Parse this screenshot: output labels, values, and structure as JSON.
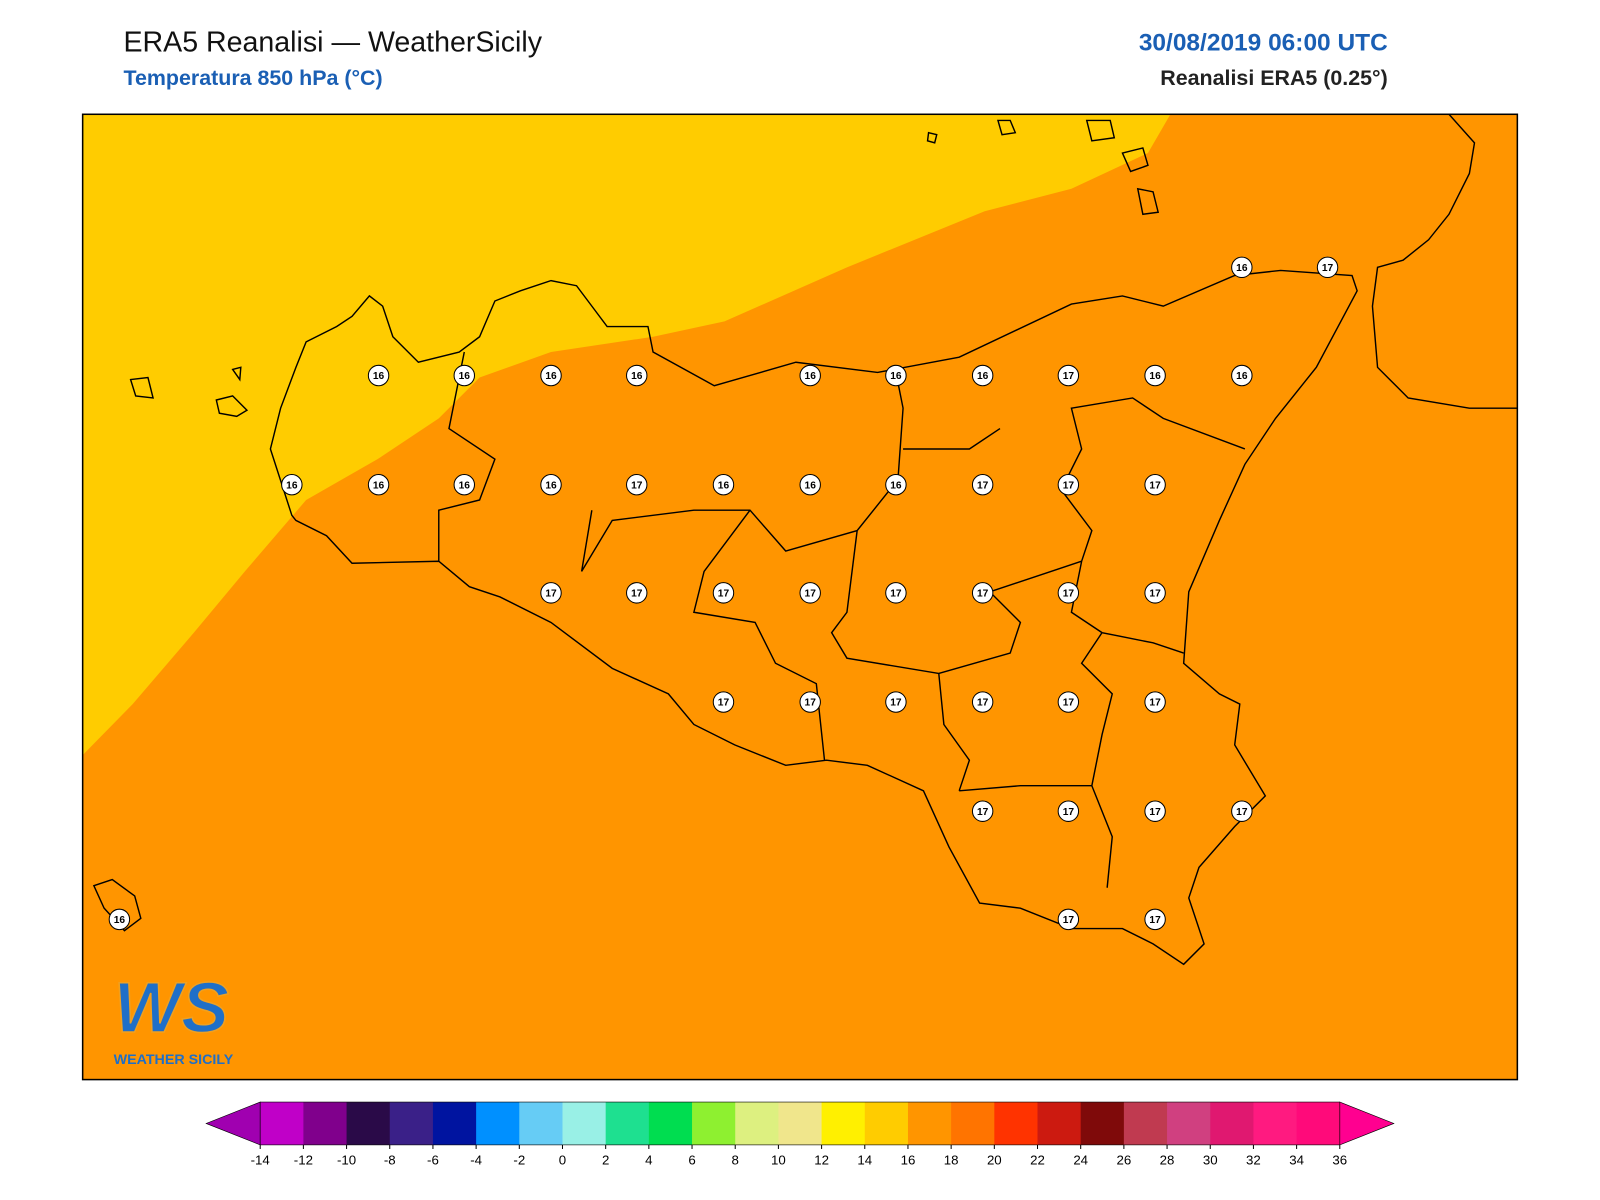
{
  "header": {
    "title": "ERA5 Reanalisi — WeatherSicily",
    "subtitle": "Temperatura 850 hPa (°C)",
    "datetime": "30/08/2019 06:00 UTC",
    "source": "Reanalisi ERA5 (0.25°)"
  },
  "map": {
    "field_colors": [
      "#ffcc00",
      "#ff9500"
    ]
  },
  "stations": [
    16,
    16,
    16,
    16,
    16,
    16,
    16,
    17,
    16,
    16,
    16,
    17,
    16,
    16,
    16,
    16,
    17,
    16,
    16,
    16,
    17,
    17,
    17,
    17,
    17,
    17,
    17,
    17,
    17,
    17,
    17,
    17,
    17,
    17,
    17,
    17,
    17,
    17,
    17,
    17,
    17,
    16,
    17,
    17
  ],
  "logo": {
    "mark": "WS",
    "name": "WEATHER SICILY"
  },
  "colorbar": {
    "ticks": [
      -14,
      -12,
      -10,
      -8,
      -6,
      -4,
      -2,
      0,
      2,
      4,
      6,
      8,
      10,
      12,
      14,
      16,
      18,
      20,
      22,
      24,
      26,
      28,
      30,
      32,
      34,
      36
    ],
    "colors": [
      "#c000c8",
      "#80008c",
      "#2a0a48",
      "#3a2088",
      "#0014a0",
      "#0090ff",
      "#66ccf5",
      "#99f0e6",
      "#1ee090",
      "#00dd50",
      "#8ef030",
      "#ddf080",
      "#f0e68c",
      "#fff000",
      "#ffcc00",
      "#ff9500",
      "#ff7400",
      "#ff3300",
      "#cc1a10",
      "#7f0a0a",
      "#c03a50",
      "#d04080",
      "#e01870",
      "#ff1a80",
      "#ff0a7a"
    ],
    "under_color": "#a000b0",
    "over_color": "#ff0090"
  }
}
